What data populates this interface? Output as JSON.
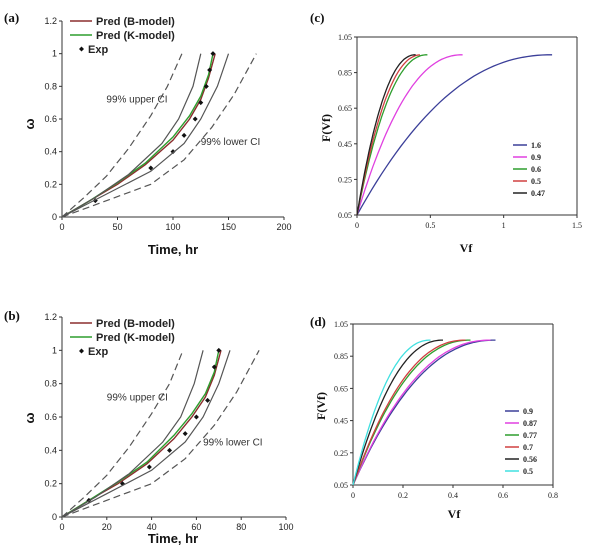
{
  "chart_data": [
    {
      "id": "a",
      "panel_label": "(a)",
      "type": "line",
      "xlabel": "Time, hr",
      "ylabel": "ω",
      "xlim": [
        0,
        200
      ],
      "ylim": [
        0,
        1.2
      ],
      "xticks": [
        "0",
        "50",
        "100",
        "150",
        "200"
      ],
      "yticks": [
        "0",
        "0.2",
        "0.4",
        "0.6",
        "0.8",
        "1",
        "1.2"
      ],
      "series": [
        {
          "name": "Pred (B-model)",
          "color": "#8B2E2E",
          "style": "solid",
          "x": [
            0,
            25,
            50,
            75,
            100,
            115,
            125,
            132,
            138
          ],
          "y": [
            0,
            0.1,
            0.2,
            0.32,
            0.47,
            0.6,
            0.72,
            0.85,
            1.0
          ]
        },
        {
          "name": "Pred (K-model)",
          "color": "#2E9E2E",
          "style": "solid",
          "x": [
            0,
            25,
            50,
            75,
            100,
            115,
            125,
            132,
            136
          ],
          "y": [
            0,
            0.1,
            0.21,
            0.33,
            0.49,
            0.62,
            0.74,
            0.87,
            1.0
          ]
        },
        {
          "name": "Exp",
          "color": "#111111",
          "style": "marker",
          "x": [
            30,
            80,
            100,
            110,
            120,
            125,
            130,
            133,
            136
          ],
          "y": [
            0.1,
            0.3,
            0.4,
            0.5,
            0.6,
            0.7,
            0.8,
            0.9,
            1.0
          ]
        },
        {
          "name": "",
          "color": "#555555",
          "style": "solid",
          "x": [
            0,
            40,
            80,
            110,
            125,
            140,
            150
          ],
          "y": [
            0,
            0.14,
            0.28,
            0.45,
            0.6,
            0.8,
            1.0
          ]
        },
        {
          "name": "",
          "color": "#555555",
          "style": "solid",
          "x": [
            0,
            30,
            60,
            90,
            105,
            118,
            125
          ],
          "y": [
            0,
            0.12,
            0.26,
            0.45,
            0.6,
            0.8,
            1.0
          ]
        },
        {
          "name": "",
          "color": "#555555",
          "style": "dashed",
          "x": [
            0,
            20,
            40,
            60,
            80,
            95,
            108
          ],
          "y": [
            0,
            0.12,
            0.25,
            0.42,
            0.62,
            0.8,
            1.0
          ]
        },
        {
          "name": "",
          "color": "#555555",
          "style": "dashed",
          "x": [
            0,
            40,
            80,
            110,
            135,
            155,
            175
          ],
          "y": [
            0,
            0.1,
            0.2,
            0.35,
            0.55,
            0.75,
            1.0
          ]
        }
      ],
      "legend": [
        "Pred (B-model)",
        "Pred (K-model)",
        "Exp"
      ],
      "annotations": [
        {
          "text": "99% upper CI",
          "x": 40,
          "y": 0.7
        },
        {
          "text": "99% lower CI",
          "x": 125,
          "y": 0.44
        }
      ]
    },
    {
      "id": "b",
      "panel_label": "(b)",
      "type": "line",
      "xlabel": "Time, hr",
      "ylabel": "ω",
      "xlim": [
        0,
        100
      ],
      "ylim": [
        0,
        1.2
      ],
      "xticks": [
        "0",
        "20",
        "40",
        "60",
        "80",
        "100"
      ],
      "yticks": [
        "0",
        "0.2",
        "0.4",
        "0.6",
        "0.8",
        "1",
        "1.2"
      ],
      "series": [
        {
          "name": "Pred (B-model)",
          "color": "#8B2E2E",
          "style": "solid",
          "x": [
            0,
            12,
            25,
            38,
            50,
            58,
            64,
            68,
            71
          ],
          "y": [
            0,
            0.1,
            0.2,
            0.32,
            0.47,
            0.6,
            0.72,
            0.85,
            1.0
          ]
        },
        {
          "name": "Pred (K-model)",
          "color": "#2E9E2E",
          "style": "solid",
          "x": [
            0,
            12,
            25,
            38,
            50,
            58,
            64,
            68,
            70
          ],
          "y": [
            0,
            0.1,
            0.21,
            0.33,
            0.49,
            0.62,
            0.74,
            0.87,
            1.0
          ]
        },
        {
          "name": "Exp",
          "color": "#111111",
          "style": "marker",
          "x": [
            12,
            27,
            39,
            48,
            55,
            60,
            65,
            68,
            70
          ],
          "y": [
            0.1,
            0.2,
            0.3,
            0.4,
            0.5,
            0.6,
            0.7,
            0.9,
            1.0
          ]
        },
        {
          "name": "",
          "color": "#555555",
          "style": "solid",
          "x": [
            0,
            20,
            40,
            55,
            63,
            70,
            75
          ],
          "y": [
            0,
            0.14,
            0.28,
            0.45,
            0.6,
            0.8,
            1.0
          ]
        },
        {
          "name": "",
          "color": "#555555",
          "style": "solid",
          "x": [
            0,
            15,
            30,
            45,
            53,
            59,
            63
          ],
          "y": [
            0,
            0.12,
            0.26,
            0.45,
            0.6,
            0.8,
            1.0
          ]
        },
        {
          "name": "",
          "color": "#555555",
          "style": "dashed",
          "x": [
            0,
            10,
            20,
            30,
            40,
            48,
            54
          ],
          "y": [
            0,
            0.12,
            0.25,
            0.42,
            0.62,
            0.8,
            1.0
          ]
        },
        {
          "name": "",
          "color": "#555555",
          "style": "dashed",
          "x": [
            0,
            20,
            40,
            55,
            68,
            78,
            88
          ],
          "y": [
            0,
            0.1,
            0.2,
            0.35,
            0.55,
            0.75,
            1.0
          ]
        }
      ],
      "legend": [
        "Pred (B-model)",
        "Pred (K-model)",
        "Exp"
      ],
      "annotations": [
        {
          "text": "99% upper CI",
          "x": 20,
          "y": 0.7
        },
        {
          "text": "99% lower CI",
          "x": 63,
          "y": 0.43
        }
      ]
    },
    {
      "id": "c",
      "panel_label": "(c)",
      "type": "line",
      "xlabel": "Vf",
      "ylabel": "F(Vf)",
      "xlim": [
        0,
        1.5
      ],
      "ylim": [
        0.05,
        1.05
      ],
      "xticks": [
        "0",
        "0.5",
        "1",
        "1.5"
      ],
      "yticks": [
        "0.05",
        "0.25",
        "0.45",
        "0.65",
        "0.85",
        "1.05"
      ],
      "series": [
        {
          "name": "1.6",
          "color": "#3B3F99",
          "vmax": 1.33
        },
        {
          "name": "0.9",
          "color": "#E040E0",
          "vmax": 0.72
        },
        {
          "name": "0.6",
          "color": "#2E9E2E",
          "vmax": 0.48
        },
        {
          "name": "0.5",
          "color": "#D04040",
          "vmax": 0.44
        },
        {
          "name": "0.47",
          "color": "#222222",
          "vmax": 0.4
        }
      ],
      "legend_position": "bottom-right"
    },
    {
      "id": "d",
      "panel_label": "(d)",
      "type": "line",
      "xlabel": "Vf",
      "ylabel": "F(Vf)",
      "xlim": [
        0,
        0.8
      ],
      "ylim": [
        0.05,
        1.05
      ],
      "xticks": [
        "0",
        "0.2",
        "0.4",
        "0.6",
        "0.8"
      ],
      "yticks": [
        "0.05",
        "0.25",
        "0.45",
        "0.65",
        "0.85",
        "1.05"
      ],
      "series": [
        {
          "name": "0.9",
          "color": "#3B3F99",
          "vmax": 0.57
        },
        {
          "name": "0.87",
          "color": "#E040E0",
          "vmax": 0.55
        },
        {
          "name": "0.77",
          "color": "#2E9E2E",
          "vmax": 0.47
        },
        {
          "name": "0.7",
          "color": "#D04040",
          "vmax": 0.45
        },
        {
          "name": "0.56",
          "color": "#222222",
          "vmax": 0.36
        },
        {
          "name": "0.5",
          "color": "#40E0E0",
          "vmax": 0.31
        }
      ],
      "legend_position": "bottom-right"
    }
  ]
}
